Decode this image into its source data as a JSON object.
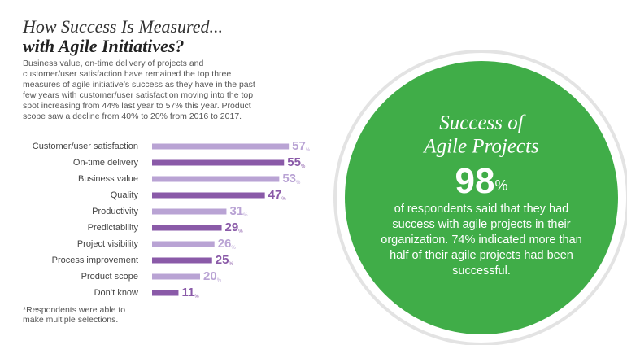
{
  "header": {
    "title_line1": "How Success Is Measured...",
    "title_line2": "with Agile Initiatives?",
    "intro": "Business value, on-time delivery of projects and customer/user satisfaction have remained the top three measures of agile initiative’s success as they have in the past few years with customer/user satisfaction moving into the top spot increasing from 44% last year to 57% this year. Product scope saw a decline from 40% to 20% from 2016 to 2017."
  },
  "chart_data": {
    "type": "bar",
    "orientation": "horizontal",
    "categories": [
      "Customer/user satisfaction",
      "On-time delivery",
      "Business value",
      "Quality",
      "Productivity",
      "Predictability",
      "Project visibility",
      "Process improvement",
      "Product scope",
      "Don’t know"
    ],
    "values": [
      57,
      55,
      53,
      47,
      31,
      29,
      26,
      25,
      20,
      11
    ],
    "value_labels": [
      "57%",
      "55%",
      "53%",
      "47%",
      "31%",
      "29%",
      "26%",
      "25%",
      "20%",
      "11%"
    ],
    "colors": [
      "#b9a3d4",
      "#8a5aa8",
      "#b9a3d4",
      "#8a5aa8",
      "#b9a3d4",
      "#8a5aa8",
      "#b9a3d4",
      "#8a5aa8",
      "#b9a3d4",
      "#8a5aa8"
    ]
  },
  "footnote": "*Respondents were able to make multiple selections.",
  "callout": {
    "title_lines": [
      "Success of",
      "Agile Projects"
    ],
    "stat": "98%",
    "text": "of respondents said that they had success with agile projects in their organization. 74% indicated more than half of their agile projects had been successful."
  }
}
